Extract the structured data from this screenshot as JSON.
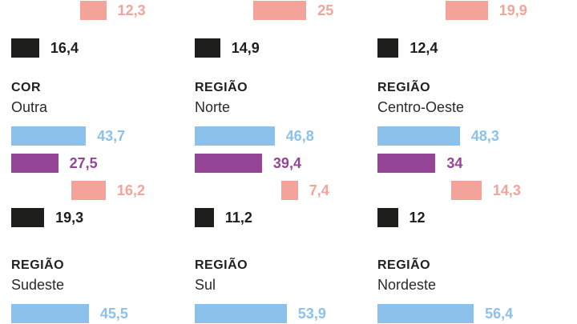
{
  "chart_data": {
    "type": "bar",
    "orientation": "horizontal",
    "colors": [
      "#8bc1ea",
      "#944596",
      "#f4a39a",
      "#1e1e1c"
    ],
    "panels": [
      {
        "category": "",
        "name": "",
        "values": [
          null,
          null,
          12.3,
          16.4
        ],
        "labels": [
          "",
          "",
          "12,3",
          "16,4"
        ]
      },
      {
        "category": "",
        "name": "",
        "values": [
          null,
          null,
          25,
          14.9
        ],
        "labels": [
          "",
          "",
          "25",
          "14,9"
        ]
      },
      {
        "category": "",
        "name": "",
        "values": [
          null,
          null,
          19.9,
          12.4
        ],
        "labels": [
          "",
          "",
          "19,9",
          "12,4"
        ]
      },
      {
        "category": "COR",
        "name": "Outra",
        "values": [
          43.7,
          27.5,
          16.2,
          19.3
        ],
        "labels": [
          "43,7",
          "27,5",
          "16,2",
          "19,3"
        ]
      },
      {
        "category": "REGIÃO",
        "name": "Norte",
        "values": [
          46.8,
          39.4,
          7.4,
          11.2
        ],
        "labels": [
          "46,8",
          "39,4",
          "7,4",
          "11,2"
        ]
      },
      {
        "category": "REGIÃO",
        "name": "Centro-Oeste",
        "values": [
          48.3,
          34,
          14.3,
          12
        ],
        "labels": [
          "48,3",
          "34",
          "14,3",
          "12"
        ]
      },
      {
        "category": "REGIÃO",
        "name": "Sudeste",
        "values": [
          45.5,
          null,
          null,
          null
        ],
        "labels": [
          "45,5",
          "",
          "",
          ""
        ]
      },
      {
        "category": "REGIÃO",
        "name": "Sul",
        "values": [
          53.9,
          null,
          null,
          null
        ],
        "labels": [
          "53,9",
          "",
          "",
          ""
        ]
      },
      {
        "category": "REGIÃO",
        "name": "Nordeste",
        "values": [
          56.4,
          null,
          null,
          null
        ],
        "labels": [
          "56,4",
          "",
          "",
          ""
        ]
      }
    ]
  }
}
